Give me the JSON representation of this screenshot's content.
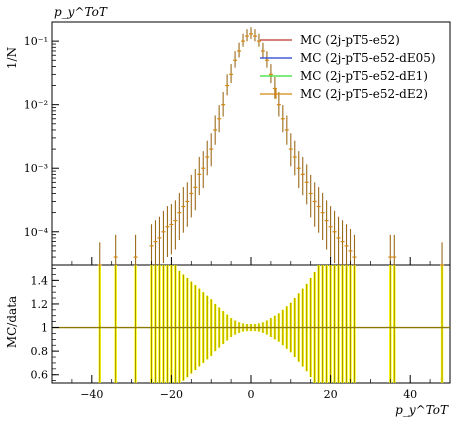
{
  "chart_data": [
    {
      "panel": "main",
      "type": "scatter",
      "title": "",
      "title_label": "p_y^ToT",
      "ylabel": "1/N",
      "yscale": "log",
      "ylim": [
        3e-05,
        0.2
      ],
      "xlim": [
        -50,
        50
      ],
      "y_tick_labels": [
        "10⁻⁴",
        "10⁻³",
        "10⁻²",
        "10⁻¹"
      ],
      "legend": {
        "placement": "top-right"
      },
      "series": [
        {
          "name": "MC (2j-pT5-e52)",
          "color": "#c0392b"
        },
        {
          "name": "MC (2j-pT5-e52-dE05)",
          "color": "#1f3fd6"
        },
        {
          "name": "MC (2j-pT5-e52-dE1)",
          "color": "#33dd33"
        },
        {
          "name": "MC (2j-pT5-e52-dE2)",
          "color": "#d4870e"
        }
      ],
      "x": [
        -38,
        -34,
        -29,
        -25,
        -24,
        -23,
        -22,
        -21,
        -20,
        -19,
        -18,
        -17,
        -16,
        -15,
        -14,
        -13,
        -12,
        -11,
        -10,
        -9,
        -8,
        -7,
        -6,
        -5,
        -4,
        -3,
        -2,
        -1,
        0,
        1,
        2,
        3,
        4,
        5,
        6,
        7,
        8,
        9,
        10,
        11,
        12,
        13,
        14,
        15,
        16,
        17,
        18,
        19,
        20,
        21,
        22,
        23,
        24,
        25,
        26,
        35,
        36,
        48
      ],
      "y": [
        3e-05,
        4e-05,
        4e-05,
        6e-05,
        7e-05,
        8e-05,
        0.0001,
        0.00012,
        0.00013,
        0.00015,
        0.0002,
        0.00025,
        0.0003,
        0.0004,
        0.0005,
        0.0008,
        0.001,
        0.0015,
        0.002,
        0.004,
        0.006,
        0.01,
        0.02,
        0.03,
        0.05,
        0.07,
        0.1,
        0.12,
        0.13,
        0.12,
        0.1,
        0.07,
        0.05,
        0.03,
        0.018,
        0.01,
        0.006,
        0.004,
        0.002,
        0.0015,
        0.001,
        0.0008,
        0.0006,
        0.0004,
        0.0003,
        0.00025,
        0.0002,
        0.00015,
        0.00012,
        0.0001,
        8e-05,
        7e-05,
        6e-05,
        5e-05,
        4e-05,
        4e-05,
        4e-05,
        3e-05
      ]
    },
    {
      "panel": "ratio",
      "type": "bar",
      "title": "",
      "ylabel": "MC/data",
      "xlabel": "p_y^ToT",
      "ylim": [
        0.53,
        1.53
      ],
      "xlim": [
        -50,
        50
      ],
      "y_ticks": [
        0.6,
        0.8,
        1,
        1.2,
        1.4
      ],
      "y_tick_labels": [
        "0.6",
        "0.8",
        "1",
        "1.2",
        "1.4"
      ],
      "x_ticks": [
        -40,
        -20,
        0,
        20,
        40
      ],
      "x_tick_labels": [
        "−40",
        "−20",
        "0",
        "20",
        "40"
      ],
      "reference_line": 1,
      "band_color": "#ffff00",
      "x": [
        -38,
        -34,
        -29,
        -25,
        -24,
        -23,
        -22,
        -21,
        -20,
        -19,
        -18,
        -17,
        -16,
        -15,
        -14,
        -13,
        -12,
        -11,
        -10,
        -9,
        -8,
        -7,
        -6,
        -5,
        -4,
        -3,
        -2,
        -1,
        0,
        1,
        2,
        3,
        4,
        5,
        6,
        7,
        8,
        9,
        10,
        11,
        12,
        13,
        14,
        15,
        16,
        17,
        18,
        19,
        20,
        21,
        22,
        23,
        24,
        25,
        26,
        35,
        36,
        48
      ],
      "band_half_width": [
        2,
        2,
        2,
        2,
        2,
        2,
        2,
        2,
        2,
        2,
        0.48,
        0.45,
        0.42,
        0.39,
        0.36,
        0.33,
        0.3,
        0.27,
        0.24,
        0.2,
        0.17,
        0.14,
        0.11,
        0.08,
        0.06,
        0.045,
        0.035,
        0.03,
        0.03,
        0.03,
        0.035,
        0.045,
        0.06,
        0.08,
        0.1,
        0.12,
        0.15,
        0.18,
        0.21,
        0.25,
        0.29,
        0.33,
        0.37,
        0.42,
        0.47,
        2,
        2,
        2,
        2,
        2,
        2,
        2,
        2,
        2,
        2,
        2,
        2,
        2
      ]
    }
  ]
}
